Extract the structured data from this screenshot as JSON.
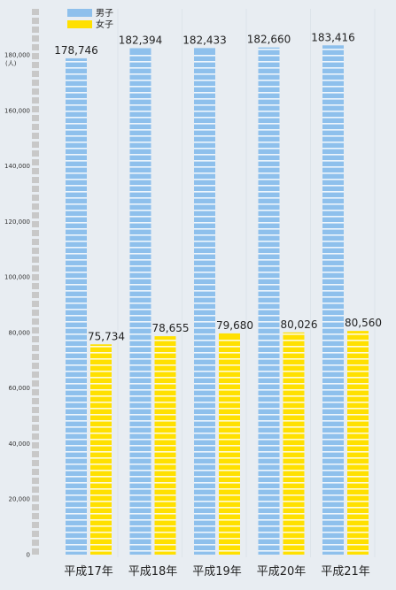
{
  "chart_data": {
    "type": "bar",
    "categories": [
      "平成17年",
      "平成18年",
      "平成19年",
      "平成20年",
      "平成21年"
    ],
    "series": [
      {
        "name": "男子",
        "values": [
          178746,
          182394,
          182433,
          182660,
          183416
        ]
      },
      {
        "name": "女子",
        "values": [
          75734,
          78655,
          79680,
          80026,
          80560
        ]
      }
    ],
    "value_labels": [
      [
        "178,746",
        "182,394",
        "182,433",
        "182,660",
        "183,416"
      ],
      [
        "75,734",
        "78,655",
        "79,680",
        "80,026",
        "80,560"
      ]
    ],
    "yticks": [
      0,
      20000,
      40000,
      60000,
      80000,
      100000,
      120000,
      140000,
      160000,
      180000
    ],
    "ytick_labels": [
      "0",
      "20,000",
      "40,000",
      "60,000",
      "80,000",
      "100,000",
      "120,000",
      "140,000",
      "160,000",
      "180,000"
    ],
    "ylabel": "(人)",
    "ylim": [
      0,
      180000
    ],
    "legend": "top-left",
    "colors": {
      "男子": "#8ec0ec",
      "女子": "#ffe000",
      "background": "#e8edf2"
    }
  }
}
